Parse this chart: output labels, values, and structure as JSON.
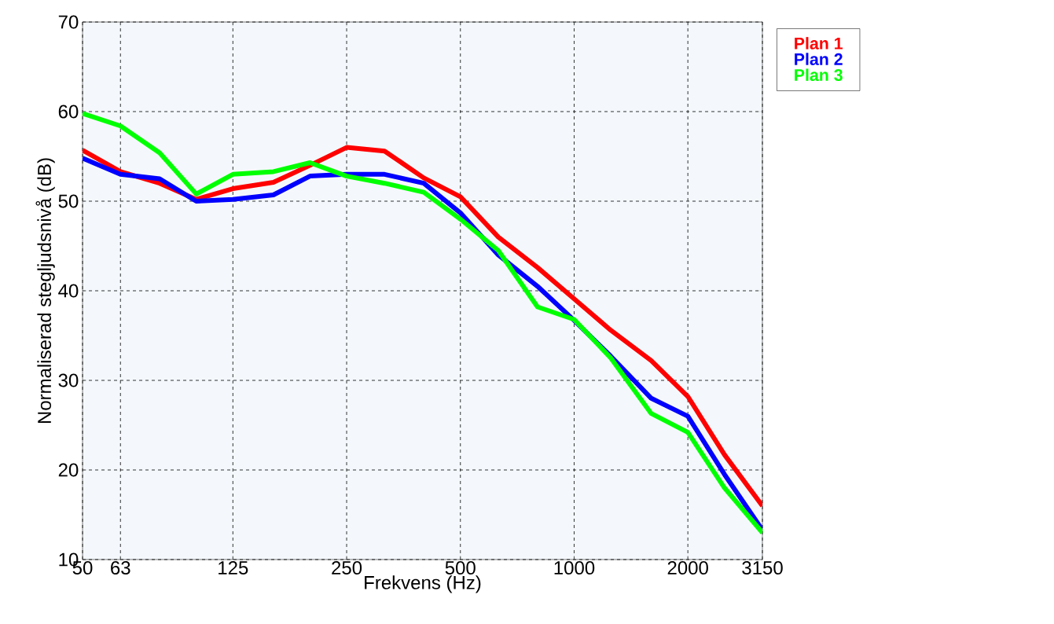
{
  "chart_data": {
    "type": "line",
    "xlabel": "Frekvens (Hz)",
    "ylabel": "Normaliserad stegljudsnivå (dB)",
    "x": [
      50,
      63,
      80,
      100,
      125,
      160,
      200,
      250,
      315,
      400,
      500,
      630,
      800,
      1000,
      1250,
      1600,
      2000,
      2500,
      3150
    ],
    "series": [
      {
        "name": "Plan 1",
        "color": "#ff0000",
        "values": [
          55.7,
          53.3,
          52,
          50.2,
          51.4,
          52.1,
          54,
          56,
          55.6,
          52.6,
          50.5,
          46,
          42.6,
          39.1,
          35.6,
          32.2,
          28.2,
          21.7,
          16
        ]
      },
      {
        "name": "Plan 2",
        "color": "#0000ff",
        "values": [
          54.8,
          53,
          52.5,
          50,
          50.2,
          50.7,
          52.8,
          53,
          53,
          52,
          48.7,
          44,
          40.5,
          36.7,
          32.7,
          28,
          26,
          19.5,
          13.3
        ]
      },
      {
        "name": "Plan 3",
        "color": "#00ff00",
        "values": [
          59.8,
          58.4,
          55.4,
          50.8,
          53,
          53.3,
          54.3,
          52.8,
          52,
          51,
          48,
          44.5,
          38.2,
          36.8,
          32.5,
          26.3,
          24.2,
          18,
          13
        ]
      }
    ],
    "log": "x",
    "xlim": [
      50,
      3150
    ],
    "xticks": [
      50,
      63,
      125,
      250,
      500,
      1000,
      2000,
      3150
    ],
    "ylim": [
      10,
      70
    ],
    "yticks": [
      10,
      20,
      30,
      40,
      50,
      60,
      70
    ],
    "grid": true,
    "legend": "top right",
    "marker": "none",
    "line_style": "solid"
  }
}
